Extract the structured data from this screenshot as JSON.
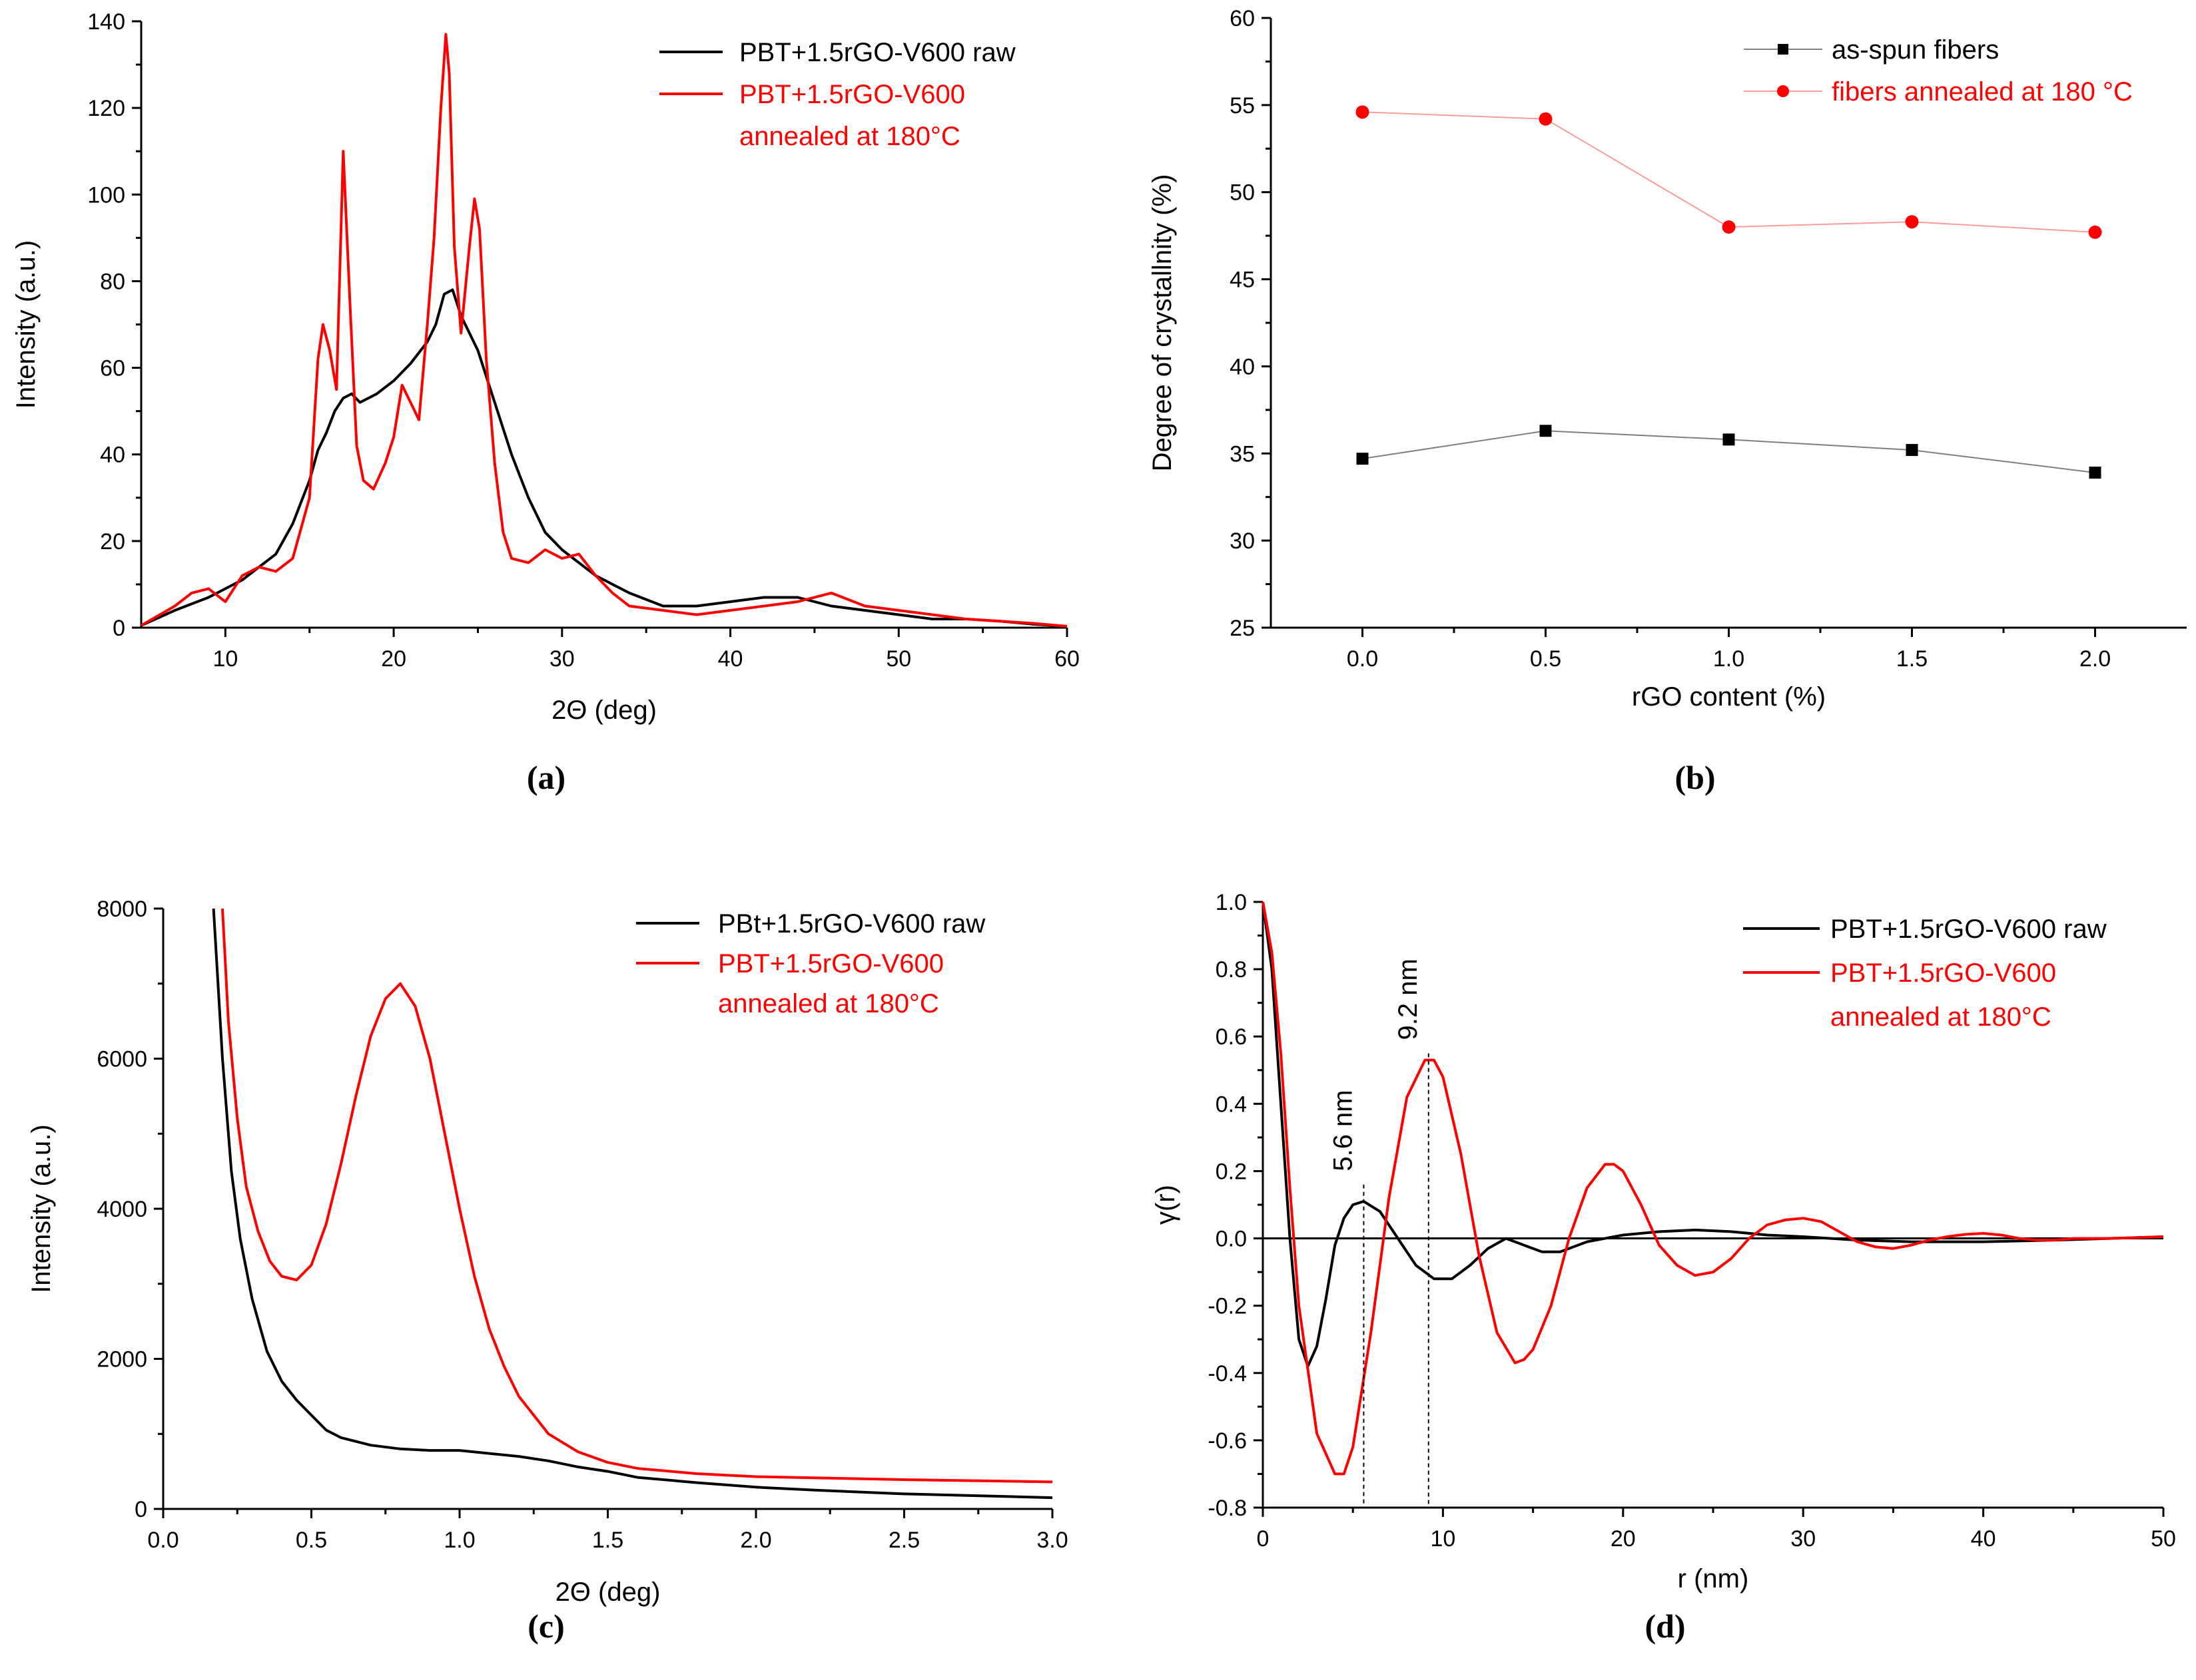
{
  "chart_data": [
    {
      "id": "a",
      "type": "line",
      "caption": "(a)",
      "xlabel": "2Θ (deg)",
      "ylabel": "Intensity (a.u.)",
      "xlim": [
        5,
        60
      ],
      "ylim": [
        0,
        140
      ],
      "xticks": [
        10,
        20,
        30,
        40,
        50,
        60
      ],
      "yticks": [
        0,
        20,
        40,
        60,
        80,
        100,
        120,
        140
      ],
      "legend_position": "top-right",
      "series": [
        {
          "name": "PBT+1.5rGO-V600 raw",
          "color": "#000000",
          "x": [
            5,
            7,
            9,
            11,
            13,
            14,
            15,
            15.5,
            16,
            16.5,
            17,
            17.5,
            18,
            19,
            20,
            21,
            22,
            22.5,
            23,
            23.5,
            24,
            25,
            26,
            27,
            28,
            29,
            30,
            32,
            34,
            36,
            38,
            40,
            42,
            44,
            46,
            48,
            50,
            52,
            54,
            56,
            58,
            60
          ],
          "y": [
            0.5,
            4,
            7,
            11,
            17,
            24,
            34,
            41,
            45,
            50,
            53,
            54,
            52,
            54,
            57,
            61,
            66,
            70,
            77,
            78,
            72,
            64,
            52,
            40,
            30,
            22,
            18,
            12,
            8,
            5,
            5,
            6,
            7,
            7,
            5,
            4,
            3,
            2,
            2,
            1.5,
            0.8,
            0.3
          ]
        },
        {
          "name": "PBT+1.5rGO-V600 annealed at 180°C",
          "color": "#ff0000",
          "x": [
            5,
            7,
            8,
            9,
            10,
            11,
            12,
            13,
            14,
            15,
            15.5,
            15.8,
            16.2,
            16.6,
            17,
            17.4,
            17.8,
            18.2,
            18.8,
            19.5,
            20,
            20.5,
            21,
            21.5,
            22,
            22.4,
            22.8,
            23.1,
            23.3,
            23.6,
            24,
            24.5,
            24.8,
            25.1,
            25.5,
            26,
            26.5,
            27,
            28,
            29,
            30,
            31,
            32,
            33,
            34,
            36,
            38,
            40,
            42,
            44,
            46,
            48,
            50,
            52,
            54,
            56,
            58,
            60
          ],
          "y": [
            0.5,
            5,
            8,
            9,
            6,
            12,
            14,
            13,
            16,
            30,
            62,
            70,
            64,
            55,
            110,
            75,
            42,
            34,
            32,
            38,
            44,
            56,
            52,
            48,
            70,
            90,
            120,
            137,
            128,
            88,
            68,
            88,
            99,
            92,
            62,
            38,
            22,
            16,
            15,
            18,
            16,
            17,
            12,
            8,
            5,
            4,
            3,
            4,
            5,
            6,
            8,
            5,
            4,
            3,
            2,
            1.5,
            1,
            0.3
          ]
        }
      ]
    },
    {
      "id": "b",
      "type": "line",
      "caption": "(b)",
      "xlabel": "rGO content (%)",
      "ylabel": "Degree of crystallnity (%)",
      "xlim": [
        -0.25,
        2.25
      ],
      "ylim": [
        25,
        60
      ],
      "xticks": [
        "0.0",
        "0.5",
        "1.0",
        "1.5",
        "2.0"
      ],
      "yticks": [
        25,
        30,
        35,
        40,
        45,
        50,
        55,
        60
      ],
      "legend_position": "top-right",
      "categories": [
        0.0,
        0.5,
        1.0,
        1.5,
        2.0
      ],
      "series": [
        {
          "name": "as-spun fibers",
          "color": "#000000",
          "marker": "square",
          "line_color": "#7f7f7f",
          "values": [
            34.7,
            36.3,
            35.8,
            35.2,
            33.9
          ]
        },
        {
          "name": "fibers annealed at 180 °C",
          "color": "#ff0000",
          "marker": "circle",
          "line_color": "#ff9a9a",
          "values": [
            54.6,
            54.2,
            48.0,
            48.3,
            47.7
          ]
        }
      ]
    },
    {
      "id": "c",
      "type": "line",
      "caption": "(c)",
      "xlabel": "2Θ (deg)",
      "ylabel": "Intensity (a.u.)",
      "xlim": [
        0,
        3.0
      ],
      "ylim": [
        0,
        8000
      ],
      "xticks": [
        "0.0",
        "0.5",
        "1.0",
        "1.5",
        "2.0",
        "2.5",
        "3.0"
      ],
      "yticks": [
        0,
        2000,
        4000,
        6000,
        8000
      ],
      "legend_position": "top-right",
      "series": [
        {
          "name": "PBt+1.5rGO-V600 raw",
          "color": "#000000",
          "x": [
            0.17,
            0.2,
            0.23,
            0.26,
            0.3,
            0.35,
            0.4,
            0.45,
            0.5,
            0.55,
            0.6,
            0.7,
            0.8,
            0.9,
            1.0,
            1.1,
            1.2,
            1.3,
            1.4,
            1.5,
            1.6,
            1.8,
            2.0,
            2.2,
            2.5,
            2.8,
            3.0
          ],
          "y": [
            8000,
            6000,
            4500,
            3600,
            2800,
            2100,
            1700,
            1450,
            1250,
            1050,
            950,
            850,
            800,
            780,
            780,
            740,
            700,
            640,
            560,
            500,
            420,
            350,
            290,
            250,
            200,
            170,
            150
          ]
        },
        {
          "name": "PBT+1.5rGO-V600 annealed at 180°C",
          "color": "#ff0000",
          "x": [
            0.2,
            0.22,
            0.25,
            0.28,
            0.32,
            0.36,
            0.4,
            0.45,
            0.5,
            0.55,
            0.6,
            0.65,
            0.7,
            0.75,
            0.8,
            0.85,
            0.9,
            0.95,
            1.0,
            1.05,
            1.1,
            1.15,
            1.2,
            1.3,
            1.4,
            1.5,
            1.6,
            1.8,
            2.0,
            2.5,
            3.0
          ],
          "y": [
            8000,
            6500,
            5200,
            4300,
            3700,
            3300,
            3100,
            3050,
            3250,
            3800,
            4600,
            5500,
            6300,
            6800,
            7000,
            6700,
            6000,
            5000,
            4000,
            3100,
            2400,
            1900,
            1500,
            1000,
            760,
            620,
            540,
            470,
            430,
            390,
            360
          ]
        }
      ]
    },
    {
      "id": "d",
      "type": "line",
      "caption": "(d)",
      "xlabel": "r (nm)",
      "ylabel": "γ(r)",
      "xlim": [
        0,
        50
      ],
      "ylim": [
        -0.8,
        1.0
      ],
      "xticks": [
        0,
        10,
        20,
        30,
        40,
        50
      ],
      "yticks": [
        "-0.8",
        "-0.6",
        "-0.4",
        "-0.2",
        "0.0",
        "0.2",
        "0.4",
        "0.6",
        "0.8",
        "1.0"
      ],
      "legend_position": "top-right",
      "annotations": [
        {
          "text": "5.6 nm",
          "x": 5.6,
          "y": 0.16
        },
        {
          "text": "9.2 nm",
          "x": 9.2,
          "y": 0.55
        }
      ],
      "series": [
        {
          "name": "PBT+1.5rGO-V600 raw",
          "color": "#000000",
          "x": [
            0,
            0.5,
            1,
            1.5,
            2,
            2.5,
            3,
            3.5,
            4,
            4.5,
            5,
            5.6,
            6.5,
            7.5,
            8.5,
            9.5,
            10.5,
            11.5,
            12.5,
            13.5,
            14.5,
            15.5,
            16.5,
            18,
            20,
            22,
            24,
            26,
            28,
            30,
            33,
            36,
            40,
            44,
            47,
            50
          ],
          "y": [
            1.0,
            0.8,
            0.4,
            0.0,
            -0.3,
            -0.38,
            -0.32,
            -0.18,
            -0.02,
            0.06,
            0.1,
            0.11,
            0.08,
            0.0,
            -0.08,
            -0.12,
            -0.12,
            -0.08,
            -0.03,
            0.0,
            -0.02,
            -0.04,
            -0.04,
            -0.01,
            0.01,
            0.02,
            0.025,
            0.02,
            0.01,
            0.005,
            -0.005,
            -0.01,
            -0.01,
            -0.005,
            0.0,
            0.005
          ]
        },
        {
          "name": "PBT+1.5rGO-V600 annealed at 180°C",
          "color": "#ff0000",
          "x": [
            0,
            0.5,
            1,
            1.5,
            2,
            3,
            4,
            4.5,
            5,
            6,
            7,
            8,
            9,
            9.5,
            10,
            11,
            12,
            13,
            14,
            14.5,
            15,
            16,
            17,
            18,
            19,
            19.5,
            20,
            21,
            22,
            23,
            24,
            25,
            26,
            27,
            28,
            29,
            30,
            31,
            32,
            33,
            34,
            35,
            36,
            37,
            38,
            39,
            40,
            41,
            42,
            43,
            44,
            45,
            47,
            50
          ],
          "y": [
            1.0,
            0.85,
            0.55,
            0.15,
            -0.2,
            -0.58,
            -0.7,
            -0.7,
            -0.62,
            -0.28,
            0.12,
            0.42,
            0.53,
            0.53,
            0.48,
            0.25,
            -0.05,
            -0.28,
            -0.37,
            -0.36,
            -0.33,
            -0.2,
            0.0,
            0.15,
            0.22,
            0.22,
            0.2,
            0.1,
            -0.02,
            -0.08,
            -0.11,
            -0.1,
            -0.06,
            0.0,
            0.04,
            0.055,
            0.06,
            0.05,
            0.02,
            -0.01,
            -0.025,
            -0.03,
            -0.02,
            -0.005,
            0.005,
            0.012,
            0.015,
            0.01,
            0.0,
            -0.005,
            -0.005,
            0.0,
            0.0,
            0.005
          ]
        }
      ]
    }
  ]
}
